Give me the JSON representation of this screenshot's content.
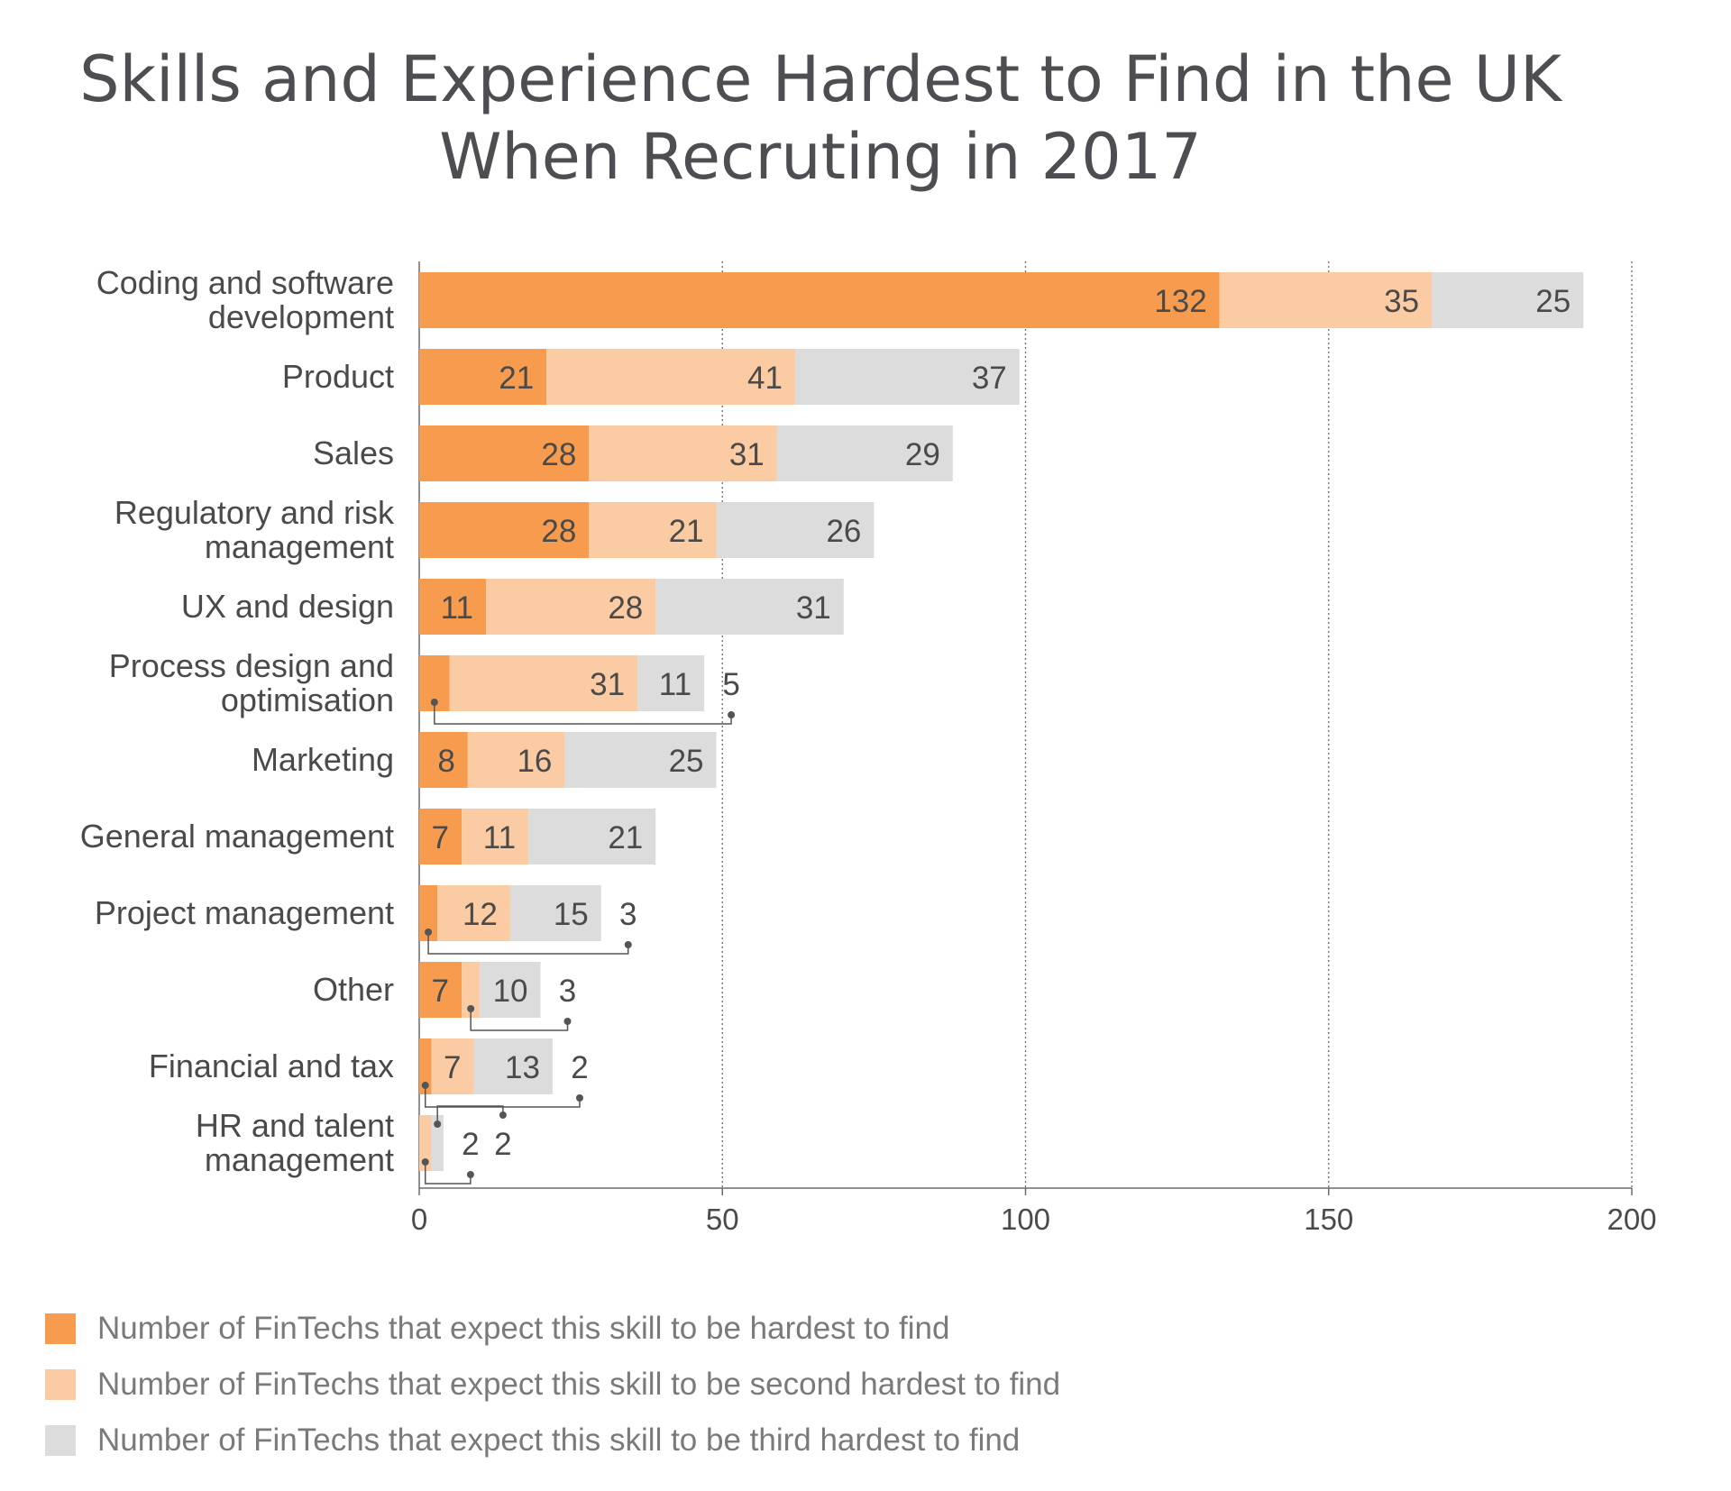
{
  "chart_data": {
    "type": "bar",
    "orientation": "horizontal",
    "stacked": true,
    "title": [
      "Skills and Experience Hardest to Find in the UK",
      "When Recruting in 2017"
    ],
    "categories": [
      [
        "Coding and software",
        "development"
      ],
      [
        "Product"
      ],
      [
        "Sales"
      ],
      [
        "Regulatory and risk",
        "management"
      ],
      [
        "UX and design"
      ],
      [
        "Process design and",
        "optimisation"
      ],
      [
        "Marketing"
      ],
      [
        "General management"
      ],
      [
        "Project management"
      ],
      [
        "Other"
      ],
      [
        "Financial and tax"
      ],
      [
        "HR and talent",
        "management"
      ]
    ],
    "series": [
      {
        "name": "Number of FinTechs that expect this skill to be hardest to find",
        "color": "#f79b4f",
        "values": [
          132,
          21,
          28,
          28,
          11,
          5,
          8,
          7,
          3,
          7,
          2,
          0
        ]
      },
      {
        "name": "Number of FinTechs that expect this skill to be second hardest to find",
        "color": "#fbcba3",
        "values": [
          35,
          41,
          31,
          21,
          28,
          31,
          16,
          11,
          12,
          3,
          7,
          2
        ]
      },
      {
        "name": "Number of FinTechs that expect this skill to be third hardest to find",
        "color": "#dcdcdd",
        "values": [
          25,
          37,
          29,
          26,
          31,
          11,
          25,
          21,
          15,
          10,
          13,
          2
        ]
      }
    ],
    "xlim": [
      0,
      200
    ],
    "xticks": [
      0,
      50,
      100,
      150,
      200
    ],
    "grid": "vertical-dotted",
    "legend_position": "bottom-left"
  }
}
